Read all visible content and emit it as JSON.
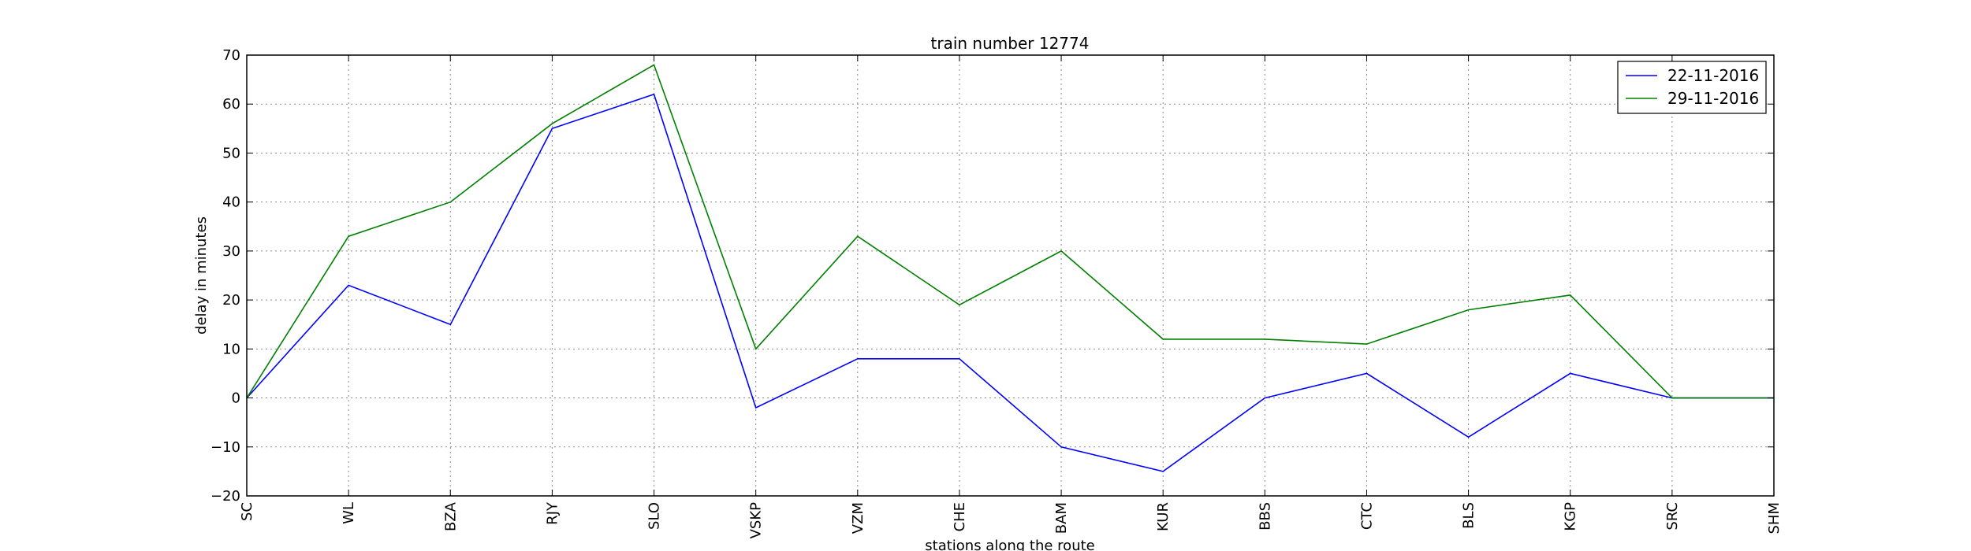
{
  "chart_data": {
    "type": "line",
    "title": "train number 12774",
    "xlabel": "stations along the route",
    "ylabel": "delay in minutes",
    "categories": [
      "SC",
      "WL",
      "BZA",
      "RJY",
      "SLO",
      "VSKP",
      "VZM",
      "CHE",
      "BAM",
      "KUR",
      "BBS",
      "CTC",
      "BLS",
      "KGP",
      "SRC",
      "SHM"
    ],
    "ylim": [
      -20,
      70
    ],
    "yticks": [
      -20,
      -10,
      0,
      10,
      20,
      30,
      40,
      50,
      60,
      70
    ],
    "grid": true,
    "legend_position": "top-right",
    "series": [
      {
        "name": "22-11-2016",
        "color": "#0000ff",
        "values": [
          0,
          23,
          15,
          55,
          62,
          -2,
          8,
          8,
          -10,
          -15,
          0,
          5,
          -8,
          5,
          0,
          0
        ]
      },
      {
        "name": "29-11-2016",
        "color": "#008000",
        "values": [
          0,
          33,
          40,
          56,
          68,
          10,
          33,
          19,
          30,
          12,
          12,
          11,
          18,
          21,
          0,
          0
        ]
      }
    ]
  }
}
